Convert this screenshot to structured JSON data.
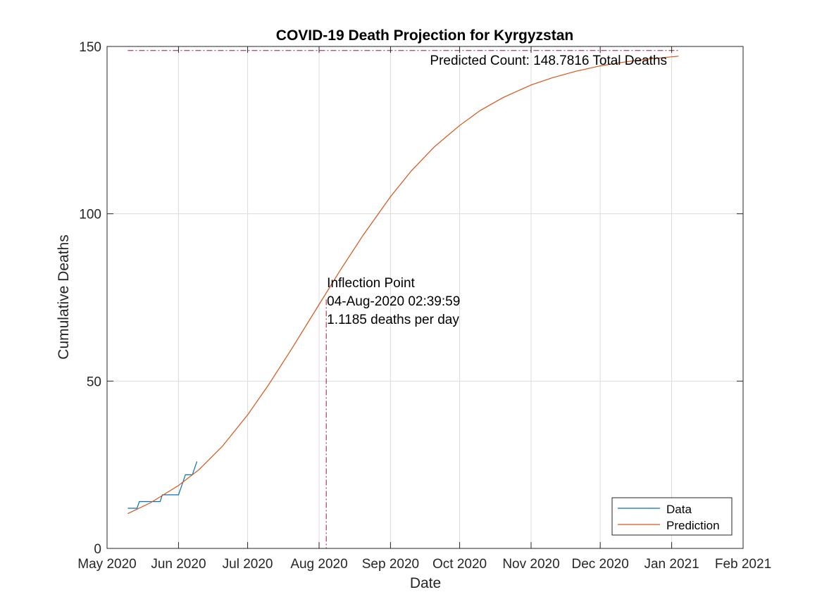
{
  "chart_data": {
    "type": "line",
    "title": "COVID-19 Death Projection for Kyrgyzstan",
    "xlabel": "Date",
    "ylabel": "Cumulative Deaths",
    "xlim": [
      "2020-05-01",
      "2021-02-01"
    ],
    "ylim": [
      0,
      150
    ],
    "grid": true,
    "x_ticks": [
      "2020-05-01",
      "2020-06-01",
      "2020-07-01",
      "2020-08-01",
      "2020-09-01",
      "2020-10-01",
      "2020-11-01",
      "2020-12-01",
      "2021-01-01",
      "2021-02-01"
    ],
    "x_tick_labels": [
      "May 2020",
      "Jun 2020",
      "Jul 2020",
      "Aug 2020",
      "Sep 2020",
      "Oct 2020",
      "Nov 2020",
      "Dec 2020",
      "Jan 2021",
      "Feb 2021"
    ],
    "y_ticks": [
      0,
      50,
      100,
      150
    ],
    "y_tick_labels": [
      "0",
      "50",
      "100",
      "150"
    ],
    "legend_position": "bottom-right",
    "colors": {
      "data": "#0072BD",
      "prediction": "#D95319",
      "reference": "#A2142F"
    },
    "series": [
      {
        "name": "Data",
        "x": [
          "2020-05-10",
          "2020-05-14",
          "2020-05-15",
          "2020-05-20",
          "2020-05-24",
          "2020-05-25",
          "2020-05-30",
          "2020-05-31",
          "2020-06-01",
          "2020-06-03",
          "2020-06-04",
          "2020-06-07",
          "2020-06-09"
        ],
        "y": [
          12,
          12,
          14,
          14,
          14,
          16,
          16,
          16,
          16,
          20,
          22,
          22,
          26
        ]
      },
      {
        "name": "Prediction",
        "x": [
          "2020-05-10",
          "2020-05-20",
          "2020-06-01",
          "2020-06-10",
          "2020-06-20",
          "2020-07-01",
          "2020-07-10",
          "2020-07-20",
          "2020-08-01",
          "2020-08-10",
          "2020-08-20",
          "2020-09-01",
          "2020-09-10",
          "2020-09-20",
          "2020-10-01",
          "2020-10-10",
          "2020-10-20",
          "2020-11-01",
          "2020-11-10",
          "2020-11-20",
          "2020-12-01",
          "2020-12-10",
          "2020-12-20",
          "2021-01-01",
          "2021-01-04"
        ],
        "y": [
          10.4,
          13.7,
          18.8,
          23.6,
          30.5,
          39.9,
          48.8,
          59.5,
          72.9,
          82.9,
          93.5,
          105.1,
          112.8,
          120.0,
          126.4,
          130.9,
          134.8,
          138.5,
          140.6,
          142.5,
          144.2,
          145.2,
          146.1,
          146.9,
          147.1
        ]
      }
    ],
    "reference_lines": {
      "predicted_count": 148.7816,
      "inflection_date": "2020-08-04 02:39:59",
      "inflection_y": 74.4
    },
    "annotations": {
      "predicted_count": "Predicted Count: 148.7816 Total Deaths",
      "inflection_lines": [
        "Inflection Point",
        "04-Aug-2020 02:39:59",
        "1.1185 deaths per day"
      ]
    }
  }
}
